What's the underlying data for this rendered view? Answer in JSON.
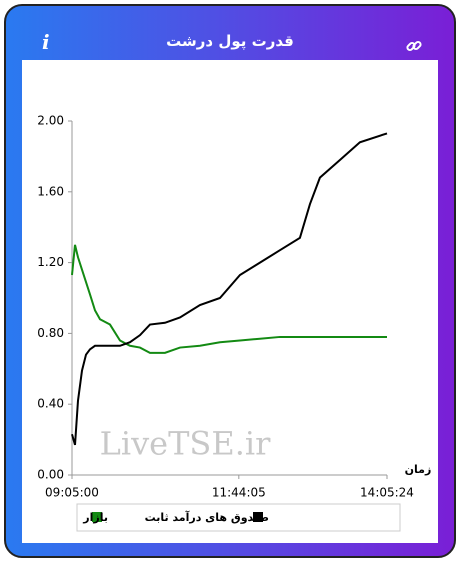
{
  "info_icon": "i",
  "chart_data": {
    "type": "line",
    "title": "قدرت پول درشت",
    "x_label": "زمان",
    "watermark": "LiveTSE.ir",
    "x": [
      "09:05:00",
      "09:07:52",
      "09:10:43",
      "09:14:32",
      "09:18:21",
      "09:22:10",
      "09:26:56",
      "09:31:42",
      "09:41:14",
      "09:50:46",
      "10:00:18",
      "10:09:50",
      "10:19:22",
      "10:33:40",
      "10:47:58",
      "11:07:02",
      "11:26:06",
      "11:45:10",
      "12:04:14",
      "12:23:18",
      "12:42:22",
      "12:51:54",
      "13:01:26",
      "13:20:30",
      "13:39:34",
      "14:05:24"
    ],
    "xlim": [
      "09:05:00",
      "14:05:24"
    ],
    "xticks": [
      "09:05:00",
      "11:44:05",
      "14:05:24"
    ],
    "ylim": [
      0,
      2
    ],
    "yticks": [
      {
        "value": 0,
        "label": "0.00"
      },
      {
        "value": 0.4,
        "label": "0.40"
      },
      {
        "value": 0.8,
        "label": "0.80"
      },
      {
        "value": 1.2,
        "label": "1.20"
      },
      {
        "value": 1.6,
        "label": "1.60"
      },
      {
        "value": 2,
        "label": "2.00"
      }
    ],
    "grid": false,
    "series": [
      {
        "name": "صندوق های درآمد ثابت",
        "color": "#000000",
        "values": [
          0.23,
          0.17,
          0.42,
          0.59,
          0.68,
          0.71,
          0.73,
          0.73,
          0.73,
          0.73,
          0.75,
          0.79,
          0.85,
          0.86,
          0.89,
          0.96,
          1.0,
          1.13,
          1.2,
          1.27,
          1.34,
          1.53,
          1.68,
          1.78,
          1.88,
          1.93
        ]
      },
      {
        "name": "بازار",
        "color": "#138a13",
        "values": [
          1.13,
          1.3,
          1.23,
          1.16,
          1.09,
          1.02,
          0.93,
          0.88,
          0.85,
          0.76,
          0.73,
          0.72,
          0.69,
          0.69,
          0.72,
          0.73,
          0.75,
          0.76,
          0.77,
          0.78,
          0.78,
          0.78,
          0.78,
          0.78,
          0.78,
          0.78
        ]
      }
    ]
  }
}
